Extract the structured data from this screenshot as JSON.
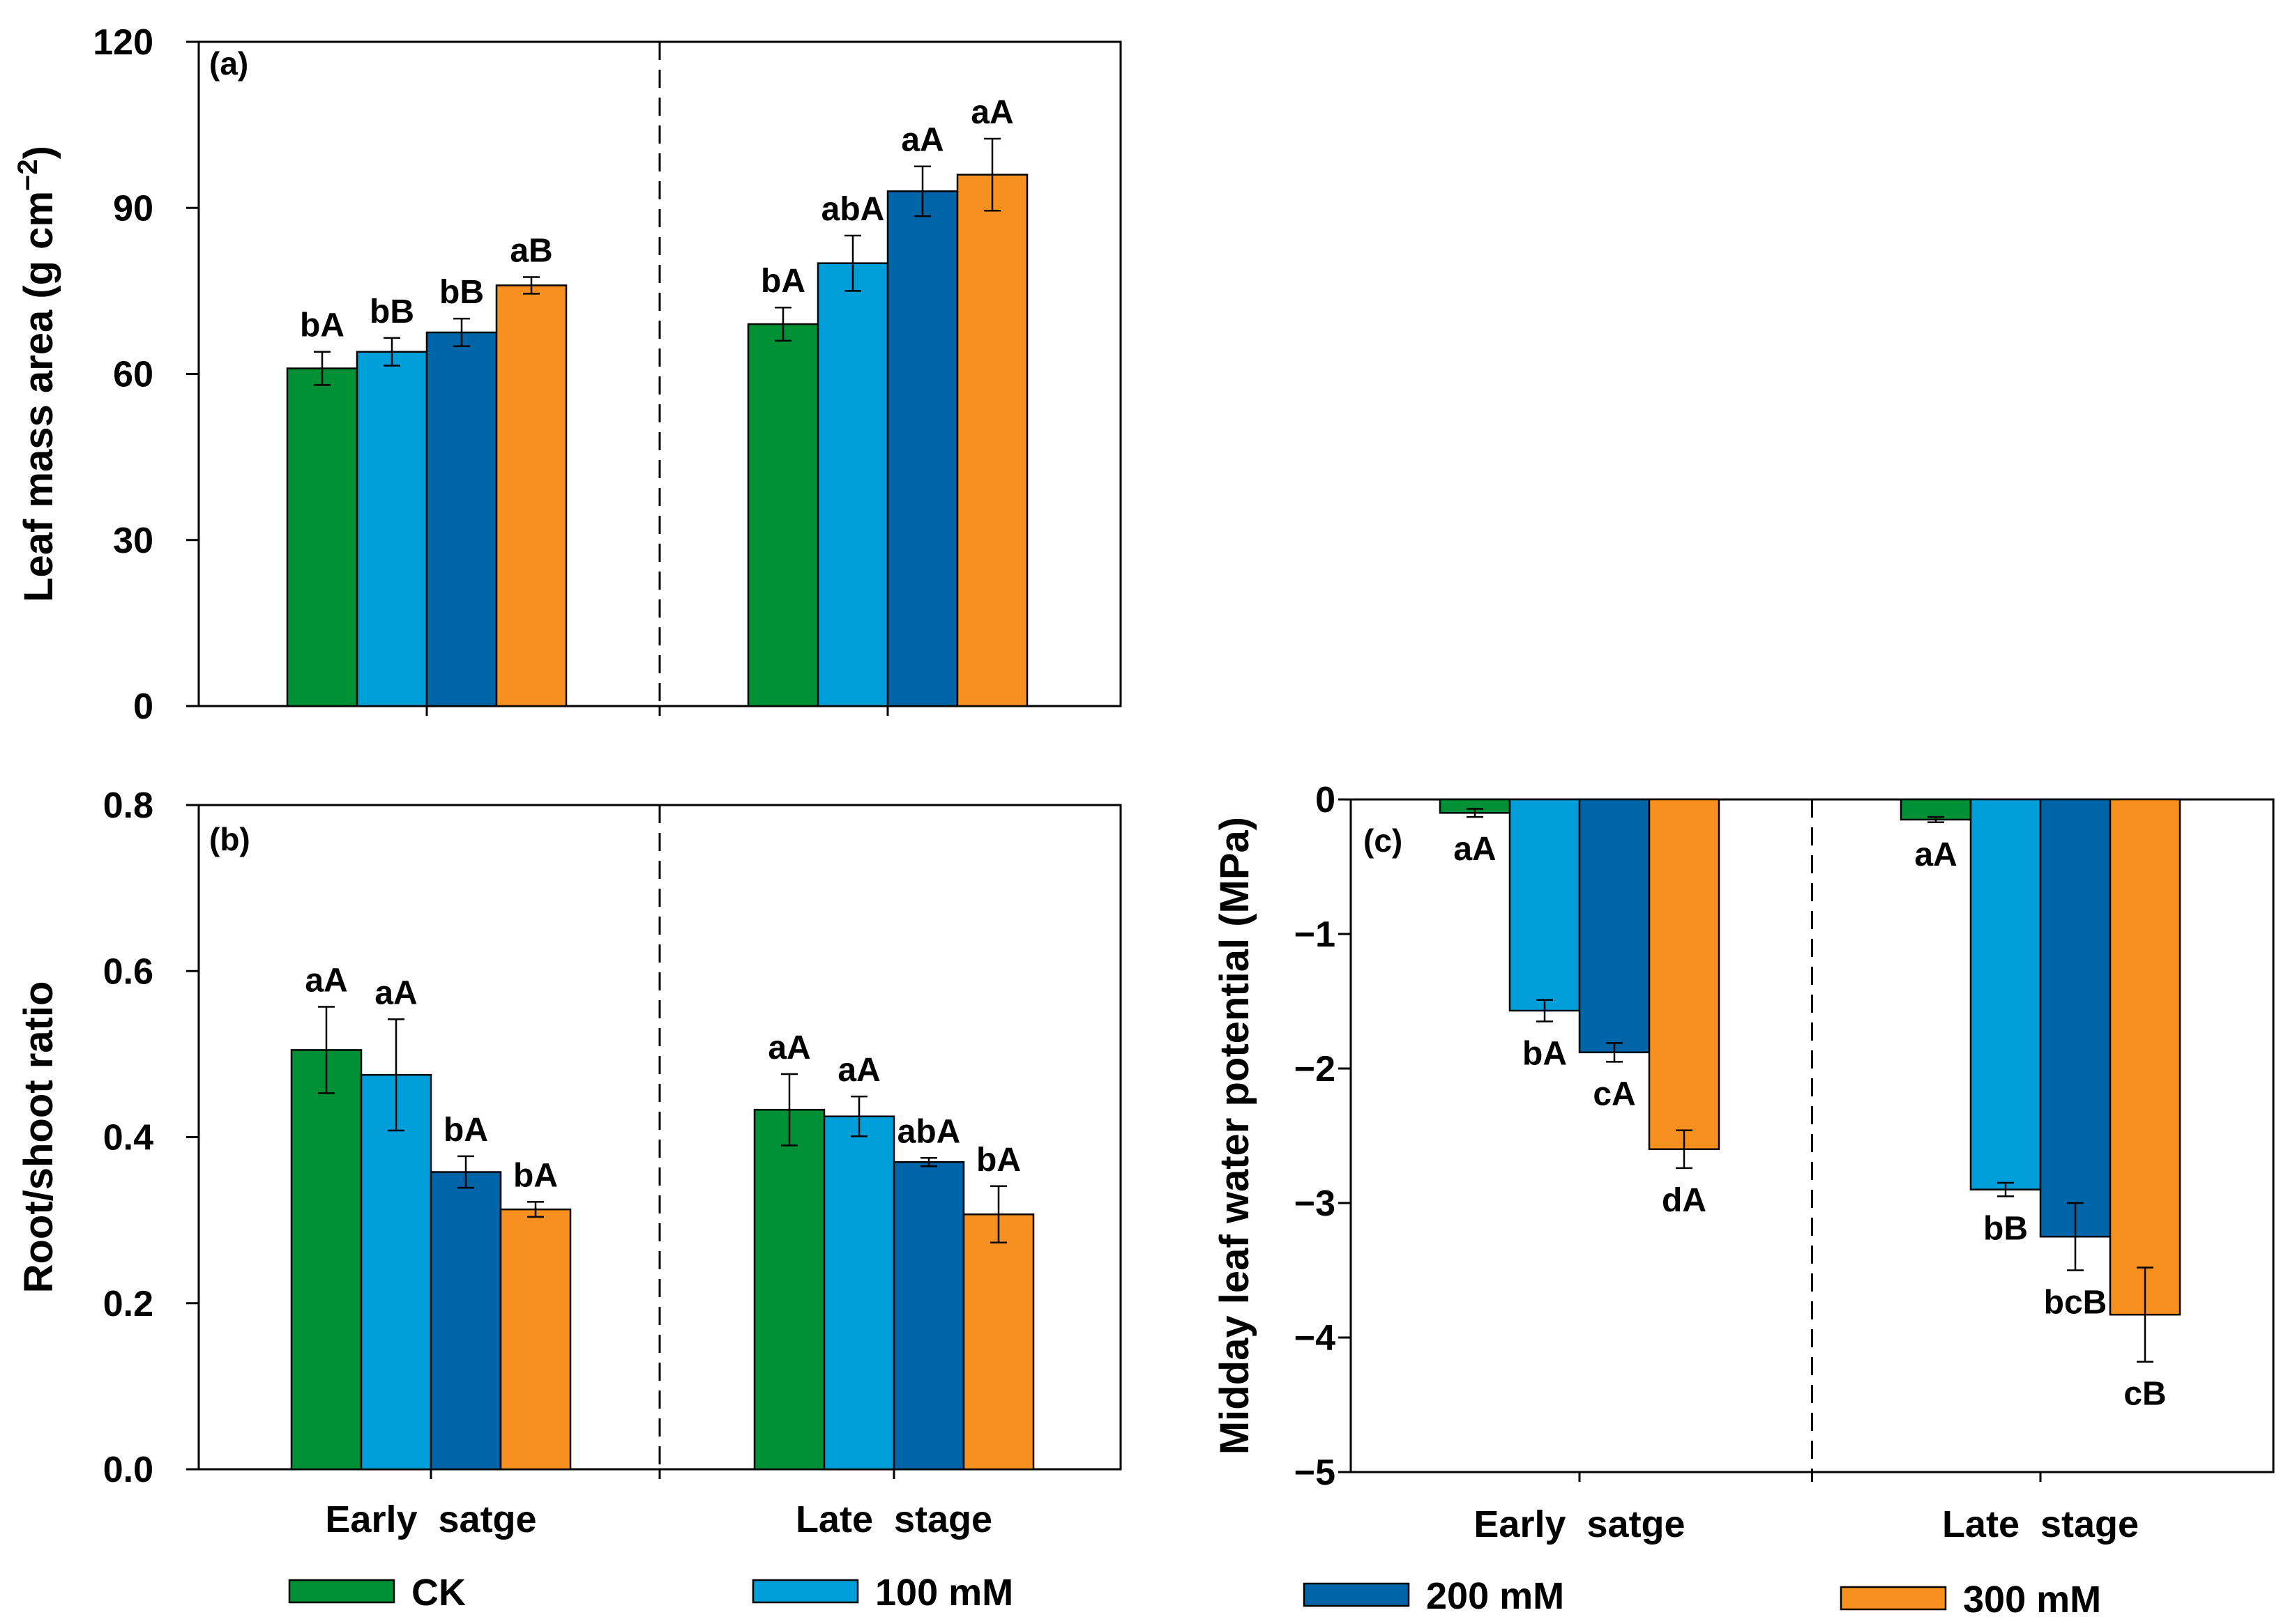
{
  "chart_data": [
    {
      "type": "bar",
      "panel": "(a)",
      "ylabel": "Leaf mass area (g cm",
      "ylabel_sup": "−2",
      "ylabel_close": ")",
      "ylim": [
        0,
        120
      ],
      "yticks": [
        0,
        30,
        60,
        90,
        120
      ],
      "ytick_labels": [
        "0",
        "30",
        "60",
        "90",
        "120"
      ],
      "categories": [
        "Early satge",
        "Late stage"
      ],
      "category_labels_shown": false,
      "series": [
        {
          "name": "CK",
          "values": [
            61,
            69
          ],
          "errors": [
            3,
            3
          ],
          "annotations": [
            "bA",
            "bA"
          ]
        },
        {
          "name": "100 mM",
          "values": [
            64,
            80
          ],
          "errors": [
            2.5,
            5
          ],
          "annotations": [
            "bB",
            "abA"
          ]
        },
        {
          "name": "200 mM",
          "values": [
            67.5,
            93
          ],
          "errors": [
            2.5,
            4.5
          ],
          "annotations": [
            "bB",
            "aA"
          ]
        },
        {
          "name": "300 mM",
          "values": [
            76,
            96
          ],
          "errors": [
            1.5,
            6.5
          ],
          "annotations": [
            "aB",
            "aA"
          ]
        }
      ]
    },
    {
      "type": "bar",
      "panel": "(b)",
      "ylabel": "Root/shoot ratio",
      "ylim": [
        0,
        0.8
      ],
      "yticks": [
        0,
        0.2,
        0.4,
        0.6,
        0.8
      ],
      "ytick_labels": [
        "0.0",
        "0.2",
        "0.4",
        "0.6",
        "0.8"
      ],
      "categories": [
        "Early satge",
        "Late stage"
      ],
      "category_labels_shown": true,
      "series": [
        {
          "name": "CK",
          "values": [
            0.505,
            0.433
          ],
          "errors": [
            0.052,
            0.043
          ],
          "annotations": [
            "aA",
            "aA"
          ]
        },
        {
          "name": "100 mM",
          "values": [
            0.475,
            0.425
          ],
          "errors": [
            0.067,
            0.024
          ],
          "annotations": [
            "aA",
            "aA"
          ]
        },
        {
          "name": "200 mM",
          "values": [
            0.358,
            0.37
          ],
          "errors": [
            0.019,
            0.005
          ],
          "annotations": [
            "bA",
            "abA"
          ]
        },
        {
          "name": "300 mM",
          "values": [
            0.313,
            0.307
          ],
          "errors": [
            0.009,
            0.034
          ],
          "annotations": [
            "bA",
            "bA"
          ]
        }
      ]
    },
    {
      "type": "bar",
      "panel": "(c)",
      "ylabel": "Midday leaf water potential (MPa)",
      "ylim": [
        -5,
        0
      ],
      "yticks": [
        0,
        -1,
        -2,
        -3,
        -4,
        -5
      ],
      "ytick_labels": [
        "0",
        "−1",
        "−2",
        "−3",
        "−4",
        "−5"
      ],
      "categories": [
        "Early satge",
        "Late stage"
      ],
      "category_labels_shown": true,
      "series": [
        {
          "name": "CK",
          "values": [
            -0.1,
            -0.15
          ],
          "errors": [
            0.03,
            0.02
          ],
          "annotations": [
            "aA",
            "aA"
          ]
        },
        {
          "name": "100 mM",
          "values": [
            -1.57,
            -2.9
          ],
          "errors": [
            0.08,
            0.05
          ],
          "annotations": [
            "bA",
            "bB"
          ]
        },
        {
          "name": "200 mM",
          "values": [
            -1.88,
            -3.25
          ],
          "errors": [
            0.07,
            0.25
          ],
          "annotations": [
            "cA",
            "bcB"
          ]
        },
        {
          "name": "300 mM",
          "values": [
            -2.6,
            -3.83
          ],
          "errors": [
            0.14,
            0.35
          ],
          "annotations": [
            "dA",
            "cB"
          ]
        }
      ]
    }
  ],
  "legend": [
    {
      "label": "CK",
      "color": "#009136"
    },
    {
      "label": "100 mM",
      "color": "#009fda"
    },
    {
      "label": "200 mM",
      "color": "#0065a8"
    },
    {
      "label": "300 mM",
      "color": "#f7901e"
    }
  ]
}
